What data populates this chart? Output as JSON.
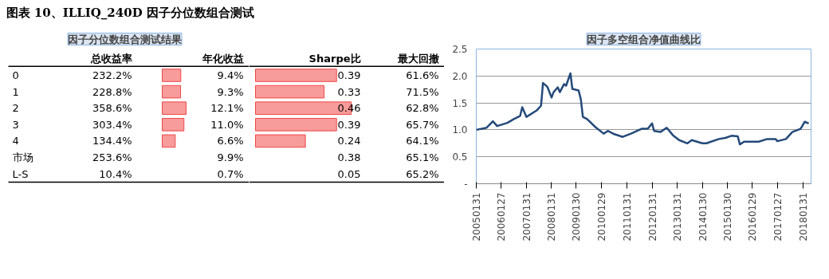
{
  "chart_data": [
    {
      "type": "bar",
      "orientation": "horizontal",
      "title": "图表 10、ILLIQ_240D 因子分位数组合测试",
      "subtitle": "因子分位数组合测试结果",
      "categories": [
        "0",
        "1",
        "2",
        "3",
        "4",
        "市场",
        "L-S"
      ],
      "series": [
        {
          "name": "总收益率",
          "values": [
            null,
            null,
            null,
            null,
            null,
            null,
            null
          ],
          "value_labels": [
            "232.2%",
            "228.8%",
            "358.6%",
            "303.4%",
            "134.4%",
            "253.6%",
            "10.4%"
          ]
        },
        {
          "name": "年化收益",
          "color": "#f04848",
          "values": [
            9.4,
            9.3,
            12.1,
            11.0,
            6.6,
            null,
            null
          ],
          "value_labels": [
            "9.4%",
            "9.3%",
            "12.1%",
            "11.0%",
            "6.6%",
            "9.9%",
            "0.7%"
          ]
        }
      ]
    },
    {
      "type": "bar",
      "orientation": "horizontal",
      "categories": [
        null,
        null,
        null,
        null,
        null,
        null,
        null
      ],
      "series": [
        {
          "name": "Sharpe比",
          "color": "#f04848",
          "values": [
            0.39,
            0.33,
            0.46,
            0.39,
            0.24,
            null,
            null
          ],
          "value_labels": [
            "0.39",
            "0.33",
            "0.46",
            "0.39",
            "0.24",
            "0.38",
            "0.05"
          ]
        },
        {
          "name": "最大回撤",
          "values": [
            null,
            null,
            null,
            null,
            null,
            null,
            null
          ],
          "value_labels": [
            "61.6%",
            "71.5%",
            "62.8%",
            "65.7%",
            "64.1%",
            "65.1%",
            "65.2%"
          ]
        }
      ]
    },
    {
      "type": "line",
      "title": "因子多空组合净值曲线比",
      "grid": "y",
      "x": [
        "2005-01-31",
        "2005-06-30",
        "2005-09-30",
        "2005-11-30",
        "2006-04-28",
        "2006-07-31",
        "2006-10-31",
        "2006-11-30",
        "2007-01-31",
        "2007-06-29",
        "2007-08-31",
        "2007-09-28",
        "2007-11-30",
        "2008-01-31",
        "2008-02-29",
        "2008-04-30",
        "2008-05-30",
        "2008-07-31",
        "2008-08-29",
        "2008-10-31",
        "2008-11-28",
        "2009-02-27",
        "2009-03-31",
        "2009-04-30",
        "2009-06-30",
        "2009-10-30",
        "2010-02-26",
        "2010-04-30",
        "2010-07-30",
        "2010-11-30",
        "2011-03-31",
        "2011-08-31",
        "2011-11-30",
        "2012-01-31",
        "2012-02-29",
        "2012-05-31",
        "2012-08-31",
        "2012-11-30",
        "2013-02-28",
        "2013-06-28",
        "2013-08-30",
        "2014-01-30",
        "2014-03-31",
        "2014-09-30",
        "2014-12-31",
        "2015-03-31",
        "2015-06-30",
        "2015-07-31",
        "2015-09-30",
        "2016-04-29",
        "2016-08-31",
        "2016-12-30",
        "2017-01-26",
        "2017-05-31",
        "2017-08-31",
        "2017-12-29",
        "2018-01-31",
        "2018-02-28",
        "2018-04-27"
      ],
      "series": [
        {
          "color": "#24497a",
          "values": [
            1.0,
            1.04,
            1.16,
            1.07,
            1.13,
            1.2,
            1.26,
            1.42,
            1.24,
            1.36,
            1.45,
            1.87,
            1.8,
            1.6,
            1.7,
            1.79,
            1.7,
            1.85,
            1.82,
            2.05,
            1.76,
            1.73,
            1.57,
            1.24,
            1.2,
            1.05,
            0.93,
            0.98,
            0.92,
            0.87,
            0.93,
            1.02,
            1.02,
            1.12,
            0.98,
            0.96,
            1.04,
            0.9,
            0.81,
            0.75,
            0.81,
            0.75,
            0.75,
            0.83,
            0.85,
            0.89,
            0.88,
            0.73,
            0.78,
            0.78,
            0.83,
            0.83,
            0.79,
            0.83,
            0.96,
            1.02,
            1.09,
            1.15,
            1.12
          ]
        }
      ],
      "xlim": [
        "2005-01-31",
        "2018-05-31"
      ],
      "xticks": [
        {
          "value": "2005-01-31",
          "label": "20050131"
        },
        {
          "value": "2006-01-27",
          "label": "20060127"
        },
        {
          "value": "2007-01-31",
          "label": "20070131"
        },
        {
          "value": "2008-01-31",
          "label": "20080131"
        },
        {
          "value": "2009-01-23",
          "label": "20090130"
        },
        {
          "value": "2010-01-29",
          "label": "20100129"
        },
        {
          "value": "2011-01-31",
          "label": "20110131"
        },
        {
          "value": "2012-01-31",
          "label": "20120131"
        },
        {
          "value": "2013-01-31",
          "label": "20130131"
        },
        {
          "value": "2014-01-30",
          "label": "20140130"
        },
        {
          "value": "2015-01-30",
          "label": "20150130"
        },
        {
          "value": "2016-01-29",
          "label": "20160129"
        },
        {
          "value": "2017-01-27",
          "label": "20170127"
        },
        {
          "value": "2018-01-31",
          "label": "20180131"
        }
      ],
      "ylim": [
        0,
        2.5
      ],
      "yticks": [
        {
          "value": 0,
          "label": "-"
        },
        {
          "value": 0.5,
          "label": "0.5"
        },
        {
          "value": 1.0,
          "label": "1.0"
        },
        {
          "value": 1.5,
          "label": "1.5"
        },
        {
          "value": 2.0,
          "label": "2.0"
        },
        {
          "value": 2.5,
          "label": "2.5"
        }
      ]
    }
  ]
}
